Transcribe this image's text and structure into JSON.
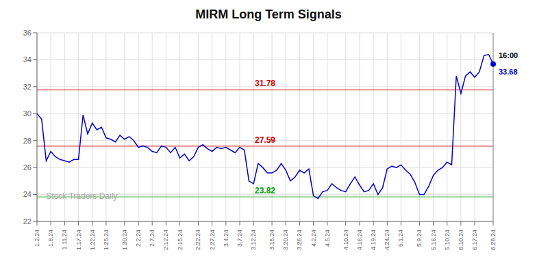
{
  "chart_data": {
    "type": "line",
    "title": "MIRM Long Term Signals",
    "watermark": "Stock Traders Daily",
    "categories": [
      "1.2.24",
      null,
      null,
      "1.8.24",
      null,
      null,
      "1.11.24",
      null,
      null,
      "1.17.24",
      null,
      null,
      "1.22.24",
      null,
      null,
      "1.25.24",
      null,
      null,
      null,
      "1.30.24",
      null,
      null,
      "2.2.24",
      null,
      null,
      "2.7.24",
      null,
      null,
      "2.12.24",
      null,
      null,
      "2.15.24",
      null,
      null,
      null,
      "2.22.24",
      null,
      null,
      "2.27.24",
      null,
      null,
      "3.4.24",
      null,
      null,
      "3.7.24",
      null,
      null,
      "3.12.24",
      null,
      null,
      null,
      "3.15.24",
      null,
      null,
      "3.20.24",
      null,
      null,
      "3.26.24",
      null,
      null,
      "4.2.24",
      null,
      null,
      "4.5.24",
      null,
      null,
      null,
      "4.10.24",
      null,
      null,
      "4.16.24",
      null,
      null,
      "4.19.24",
      null,
      null,
      "4.24.24",
      null,
      null,
      "5.1.24",
      null,
      null,
      null,
      "5.9.24",
      null,
      null,
      "5.16.24",
      null,
      null,
      "5.10.24",
      null,
      null,
      "6.10.24",
      null,
      null,
      "6.17.24",
      null,
      null,
      null,
      "6.28.24"
    ],
    "values": [
      30.0,
      29.6,
      26.5,
      27.2,
      26.8,
      26.6,
      26.5,
      26.4,
      26.6,
      26.6,
      29.9,
      28.5,
      29.3,
      28.8,
      29.0,
      28.2,
      28.1,
      27.9,
      28.4,
      28.1,
      28.3,
      28.0,
      27.5,
      27.6,
      27.5,
      27.2,
      27.1,
      27.6,
      27.5,
      27.1,
      27.5,
      26.7,
      27.0,
      26.5,
      26.8,
      27.5,
      27.7,
      27.4,
      27.2,
      27.5,
      27.4,
      27.5,
      27.3,
      27.1,
      27.5,
      27.3,
      25.0,
      24.8,
      26.3,
      26.0,
      25.6,
      25.6,
      25.8,
      26.3,
      25.8,
      25.0,
      25.3,
      25.8,
      25.6,
      25.9,
      23.9,
      23.7,
      24.2,
      24.3,
      24.8,
      24.5,
      24.3,
      24.2,
      24.8,
      25.3,
      24.7,
      24.2,
      24.3,
      24.8,
      24.0,
      24.5,
      25.9,
      26.1,
      26.0,
      26.2,
      25.8,
      25.5,
      24.9,
      24.0,
      24.0,
      24.6,
      25.4,
      25.8,
      26.0,
      26.4,
      26.2,
      32.8,
      31.5,
      32.8,
      33.1,
      32.7,
      33.1,
      34.3,
      34.4,
      33.68
    ],
    "color": "#0000cc",
    "hlines": [
      {
        "value": 31.78,
        "label": "31.78",
        "color": "#cc0000"
      },
      {
        "value": 27.59,
        "label": "27.59",
        "color": "#cc0000"
      },
      {
        "value": 23.82,
        "label": "23.82",
        "color": "#009900"
      }
    ],
    "annotations": [
      "16:00",
      "33.68"
    ],
    "ylim": [
      22,
      36
    ],
    "yticks": [
      22,
      24,
      26,
      28,
      30,
      32,
      34,
      36
    ],
    "grid": true
  }
}
